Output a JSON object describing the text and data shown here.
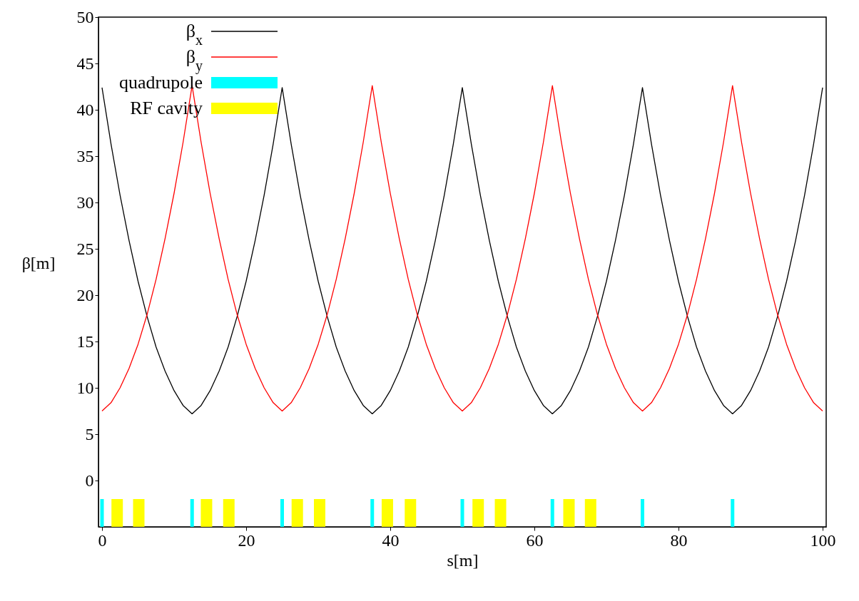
{
  "chart_data": {
    "type": "line",
    "xlabel": "s[m]",
    "ylabel": "β[m]",
    "legend": "top left",
    "grid": false,
    "xlim": [
      0,
      100
    ],
    "xticks": [
      0,
      20,
      40,
      60,
      80,
      100
    ],
    "ylim": [
      -5,
      50
    ],
    "yticks": [
      0,
      5,
      10,
      15,
      20,
      25,
      30,
      35,
      40,
      45,
      50
    ],
    "x": [
      0,
      1.25,
      2.5,
      3.75,
      5,
      6.25,
      7.5,
      8.75,
      10,
      11.25,
      12.5,
      13.75,
      15,
      16.25,
      17.5,
      18.75,
      20,
      21.25,
      22.5,
      23.75,
      25,
      26.25,
      27.5,
      28.75,
      30,
      31.25,
      32.5,
      33.75,
      35,
      36.25,
      37.5,
      38.75,
      40,
      41.25,
      42.5,
      43.75,
      45,
      46.25,
      47.5,
      48.75,
      50,
      51.25,
      52.5,
      53.75,
      55,
      56.25,
      57.5,
      58.75,
      60,
      61.25,
      62.5,
      63.75,
      65,
      66.25,
      67.5,
      68.75,
      70,
      71.25,
      72.5,
      73.75,
      75,
      76.25,
      77.5,
      78.75,
      80,
      81.25,
      82.5,
      83.75,
      85,
      86.25,
      87.5,
      88.75,
      90,
      91.25,
      92.5,
      93.75,
      95,
      96.25,
      97.5,
      98.75,
      100
    ],
    "series": [
      {
        "name": "β$_{x}$",
        "color": "#000000",
        "values": [
          42.4,
          36.3,
          30.8,
          25.9,
          21.5,
          17.7,
          14.4,
          11.8,
          9.7,
          8.1,
          7.2,
          8.1,
          9.7,
          11.8,
          14.4,
          17.7,
          21.5,
          25.9,
          30.8,
          36.3,
          42.4,
          36.3,
          30.8,
          25.9,
          21.5,
          17.7,
          14.4,
          11.8,
          9.7,
          8.1,
          7.2,
          8.1,
          9.7,
          11.8,
          14.4,
          17.7,
          21.5,
          25.9,
          30.8,
          36.3,
          42.4,
          36.3,
          30.8,
          25.9,
          21.5,
          17.7,
          14.4,
          11.8,
          9.7,
          8.1,
          7.2,
          8.1,
          9.7,
          11.8,
          14.4,
          17.7,
          21.5,
          25.9,
          30.8,
          36.3,
          42.4,
          36.3,
          30.8,
          25.9,
          21.5,
          17.7,
          14.4,
          11.8,
          9.7,
          8.1,
          7.2,
          8.1,
          9.7,
          11.8,
          14.4,
          17.7,
          21.5,
          25.9,
          30.8,
          36.3,
          42.4
        ]
      },
      {
        "name": "β$_{y}$",
        "color": "#ff0000",
        "values": [
          7.5,
          8.4,
          10.0,
          12.1,
          14.7,
          17.9,
          21.7,
          26.1,
          31.0,
          36.5,
          42.6,
          36.5,
          31.0,
          26.1,
          21.7,
          17.9,
          14.7,
          12.1,
          10.0,
          8.4,
          7.5,
          8.4,
          10.0,
          12.1,
          14.7,
          17.9,
          21.7,
          26.1,
          31.0,
          36.5,
          42.6,
          36.5,
          31.0,
          26.1,
          21.7,
          17.9,
          14.7,
          12.1,
          10.0,
          8.4,
          7.5,
          8.4,
          10.0,
          12.1,
          14.7,
          17.9,
          21.7,
          26.1,
          31.0,
          36.5,
          42.6,
          36.5,
          31.0,
          26.1,
          21.7,
          17.9,
          14.7,
          12.1,
          10.0,
          8.4,
          7.5,
          8.4,
          10.0,
          12.1,
          14.7,
          17.9,
          21.7,
          26.1,
          31.0,
          36.5,
          42.6,
          36.5,
          31.0,
          26.1,
          21.7,
          17.9,
          14.7,
          12.1,
          10.0,
          8.4,
          7.5
        ]
      },
      {
        "name": "quadrupole",
        "type": "bar",
        "color": "#00ffff",
        "x": [
          0,
          12.5,
          25,
          37.5,
          50,
          62.5,
          75,
          87.5
        ],
        "values": [
          3,
          3,
          3,
          3,
          3,
          3,
          3,
          3
        ],
        "base": [
          -5,
          -5,
          -5,
          -5,
          -5,
          -5,
          -5,
          -5
        ]
      },
      {
        "name": "RF cavity",
        "type": "bar",
        "color": "#ffff00",
        "x": [
          2.1,
          5.1,
          14.5,
          17.6,
          27.1,
          30.2,
          39.6,
          42.8,
          52.2,
          55.3,
          64.8,
          67.8
        ],
        "values": [
          3,
          3,
          3,
          3,
          3,
          3,
          3,
          3,
          3,
          3,
          3,
          3
        ],
        "base": [
          -5,
          -5,
          -5,
          -5,
          -5,
          -5,
          -5,
          -5,
          -5,
          -5,
          -5,
          -5
        ]
      }
    ]
  }
}
